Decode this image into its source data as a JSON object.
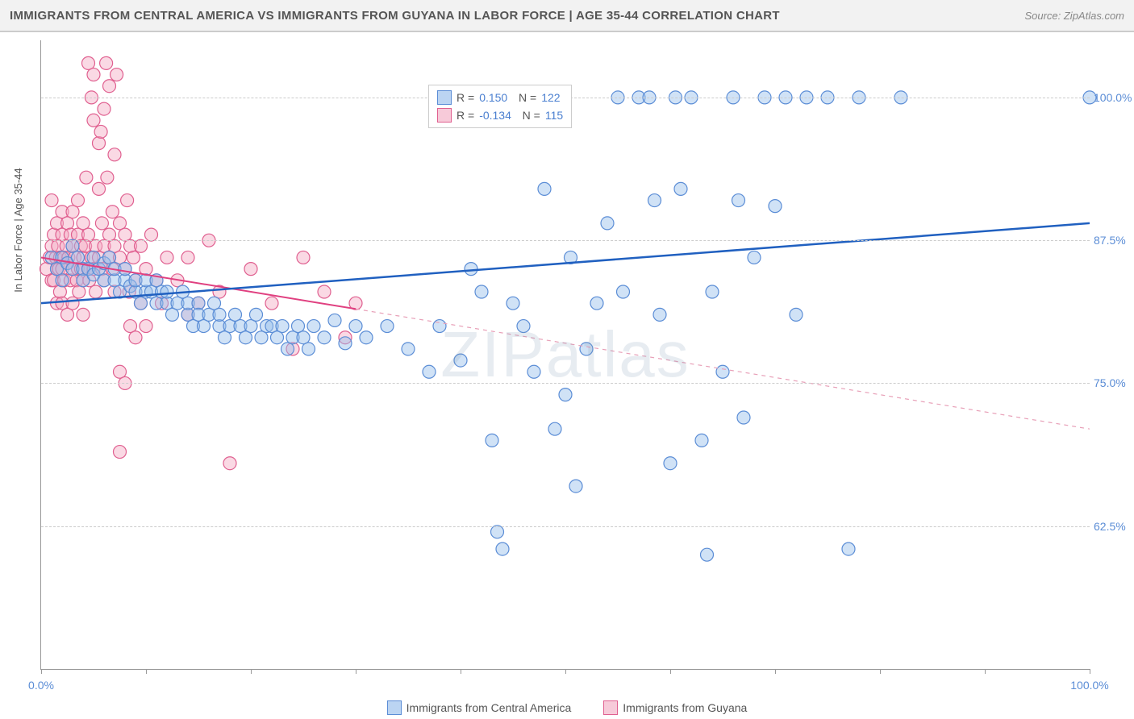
{
  "title": "IMMIGRANTS FROM CENTRAL AMERICA VS IMMIGRANTS FROM GUYANA IN LABOR FORCE | AGE 35-44 CORRELATION CHART",
  "source": "Source: ZipAtlas.com",
  "ylabel": "In Labor Force | Age 35-44",
  "watermark": "ZIPatlas",
  "chart": {
    "type": "scatter",
    "xlim": [
      0,
      100
    ],
    "ylim": [
      50,
      105
    ],
    "yticks": [
      62.5,
      75.0,
      87.5,
      100.0
    ],
    "ytick_labels": [
      "62.5%",
      "75.0%",
      "87.5%",
      "100.0%"
    ],
    "xticks": [
      0,
      10,
      20,
      30,
      40,
      50,
      60,
      70,
      80,
      90,
      100
    ],
    "xtick_labels_shown": {
      "0": "0.0%",
      "100": "100.0%"
    },
    "marker_radius": 8,
    "background_color": "#ffffff",
    "grid_color": "#cccccc",
    "series": [
      {
        "name": "Immigrants from Central America",
        "color_fill": "rgba(150,190,235,0.45)",
        "color_stroke": "#5b8dd6",
        "R": "0.150",
        "N": "122",
        "trend": {
          "x1": 0,
          "y1": 82.0,
          "x2": 100,
          "y2": 89.0,
          "color": "#2060c0",
          "width": 2.5
        },
        "points": [
          [
            1,
            86
          ],
          [
            1.5,
            85
          ],
          [
            2,
            84
          ],
          [
            2,
            86
          ],
          [
            2.5,
            85.5
          ],
          [
            3,
            85
          ],
          [
            3,
            87
          ],
          [
            3.5,
            86
          ],
          [
            4,
            85
          ],
          [
            4,
            84
          ],
          [
            4.5,
            85
          ],
          [
            5,
            84.5
          ],
          [
            5,
            86
          ],
          [
            5.5,
            85
          ],
          [
            6,
            84
          ],
          [
            6,
            85.5
          ],
          [
            6.5,
            86
          ],
          [
            7,
            84
          ],
          [
            7,
            85
          ],
          [
            7.5,
            83
          ],
          [
            8,
            84
          ],
          [
            8,
            85
          ],
          [
            8.5,
            83.5
          ],
          [
            9,
            83
          ],
          [
            9,
            84
          ],
          [
            9.5,
            82
          ],
          [
            10,
            83
          ],
          [
            10,
            84
          ],
          [
            10.5,
            83
          ],
          [
            11,
            82
          ],
          [
            11,
            84
          ],
          [
            11.5,
            83
          ],
          [
            12,
            82
          ],
          [
            12,
            83
          ],
          [
            12.5,
            81
          ],
          [
            13,
            82
          ],
          [
            13.5,
            83
          ],
          [
            14,
            81
          ],
          [
            14,
            82
          ],
          [
            14.5,
            80
          ],
          [
            15,
            82
          ],
          [
            15,
            81
          ],
          [
            15.5,
            80
          ],
          [
            16,
            81
          ],
          [
            16.5,
            82
          ],
          [
            17,
            80
          ],
          [
            17,
            81
          ],
          [
            17.5,
            79
          ],
          [
            18,
            80
          ],
          [
            18.5,
            81
          ],
          [
            19,
            80
          ],
          [
            19.5,
            79
          ],
          [
            20,
            80
          ],
          [
            20.5,
            81
          ],
          [
            21,
            79
          ],
          [
            21.5,
            80
          ],
          [
            22,
            80
          ],
          [
            22.5,
            79
          ],
          [
            23,
            80
          ],
          [
            23.5,
            78
          ],
          [
            24,
            79
          ],
          [
            24.5,
            80
          ],
          [
            25,
            79
          ],
          [
            25.5,
            78
          ],
          [
            26,
            80
          ],
          [
            27,
            79
          ],
          [
            28,
            80.5
          ],
          [
            29,
            78.5
          ],
          [
            30,
            80
          ],
          [
            31,
            79
          ],
          [
            33,
            80
          ],
          [
            35,
            78
          ],
          [
            37,
            76
          ],
          [
            38,
            80
          ],
          [
            40,
            77
          ],
          [
            41,
            85
          ],
          [
            42,
            83
          ],
          [
            43,
            70
          ],
          [
            43.5,
            62
          ],
          [
            44,
            60.5
          ],
          [
            45,
            82
          ],
          [
            46,
            80
          ],
          [
            47,
            76
          ],
          [
            48,
            92
          ],
          [
            49,
            71
          ],
          [
            49.5,
            100
          ],
          [
            50,
            74
          ],
          [
            50.5,
            86
          ],
          [
            51,
            66
          ],
          [
            52,
            78
          ],
          [
            53,
            82
          ],
          [
            54,
            89
          ],
          [
            55,
            100
          ],
          [
            55.5,
            83
          ],
          [
            57,
            100
          ],
          [
            58,
            100
          ],
          [
            58.5,
            91
          ],
          [
            59,
            81
          ],
          [
            60,
            68
          ],
          [
            60.5,
            100
          ],
          [
            61,
            92
          ],
          [
            62,
            100
          ],
          [
            63,
            70
          ],
          [
            63.5,
            60
          ],
          [
            64,
            83
          ],
          [
            65,
            76
          ],
          [
            66,
            100
          ],
          [
            66.5,
            91
          ],
          [
            67,
            72
          ],
          [
            68,
            86
          ],
          [
            69,
            100
          ],
          [
            70,
            90.5
          ],
          [
            71,
            100
          ],
          [
            72,
            81
          ],
          [
            73,
            100
          ],
          [
            75,
            100
          ],
          [
            77,
            60.5
          ],
          [
            78,
            100
          ],
          [
            82,
            100
          ],
          [
            100,
            100
          ]
        ]
      },
      {
        "name": "Immigrants from Guyana",
        "color_fill": "rgba(245,170,195,0.45)",
        "color_stroke": "#e06090",
        "R": "-0.134",
        "N": "115",
        "trend_solid": {
          "x1": 0,
          "y1": 86.0,
          "x2": 30,
          "y2": 81.5,
          "color": "#e04080",
          "width": 2
        },
        "trend_dash": {
          "x1": 30,
          "y1": 81.5,
          "x2": 100,
          "y2": 71.0,
          "color": "#e8a0b8",
          "width": 1.2
        },
        "points": [
          [
            0.5,
            85
          ],
          [
            0.8,
            86
          ],
          [
            1,
            84
          ],
          [
            1,
            87
          ],
          [
            1,
            91
          ],
          [
            1.2,
            88
          ],
          [
            1.2,
            84
          ],
          [
            1.4,
            86
          ],
          [
            1.5,
            85
          ],
          [
            1.5,
            89
          ],
          [
            1.5,
            82
          ],
          [
            1.6,
            87
          ],
          [
            1.7,
            85
          ],
          [
            1.8,
            86
          ],
          [
            1.8,
            83
          ],
          [
            2,
            85
          ],
          [
            2,
            88
          ],
          [
            2,
            90
          ],
          [
            2,
            82
          ],
          [
            2.2,
            86
          ],
          [
            2.2,
            84
          ],
          [
            2.4,
            87
          ],
          [
            2.5,
            85.5
          ],
          [
            2.5,
            89
          ],
          [
            2.5,
            81
          ],
          [
            2.6,
            86
          ],
          [
            2.8,
            84
          ],
          [
            2.8,
            88
          ],
          [
            3,
            85
          ],
          [
            3,
            87
          ],
          [
            3,
            90
          ],
          [
            3,
            82
          ],
          [
            3.2,
            86
          ],
          [
            3.4,
            84
          ],
          [
            3.5,
            88
          ],
          [
            3.5,
            85
          ],
          [
            3.5,
            91
          ],
          [
            3.6,
            83
          ],
          [
            3.8,
            87
          ],
          [
            3.8,
            85
          ],
          [
            4,
            86
          ],
          [
            4,
            84
          ],
          [
            4,
            89
          ],
          [
            4,
            81
          ],
          [
            4.2,
            87
          ],
          [
            4.3,
            93
          ],
          [
            4.5,
            85
          ],
          [
            4.5,
            88
          ],
          [
            4.5,
            103
          ],
          [
            4.6,
            84
          ],
          [
            4.8,
            100
          ],
          [
            4.8,
            86
          ],
          [
            5,
            85
          ],
          [
            5,
            102
          ],
          [
            5,
            98
          ],
          [
            5.2,
            87
          ],
          [
            5.2,
            83
          ],
          [
            5.5,
            86
          ],
          [
            5.5,
            92
          ],
          [
            5.5,
            96
          ],
          [
            5.7,
            97
          ],
          [
            5.8,
            85
          ],
          [
            5.8,
            89
          ],
          [
            6,
            84
          ],
          [
            6,
            87
          ],
          [
            6,
            99
          ],
          [
            6.2,
            103
          ],
          [
            6.3,
            93
          ],
          [
            6.5,
            86
          ],
          [
            6.5,
            88
          ],
          [
            6.5,
            101
          ],
          [
            6.8,
            85
          ],
          [
            6.8,
            90
          ],
          [
            7,
            87
          ],
          [
            7,
            83
          ],
          [
            7,
            95
          ],
          [
            7.2,
            102
          ],
          [
            7.5,
            86
          ],
          [
            7.5,
            89
          ],
          [
            7.5,
            76
          ],
          [
            7.5,
            69
          ],
          [
            8,
            85
          ],
          [
            8,
            88
          ],
          [
            8,
            75
          ],
          [
            8.2,
            91
          ],
          [
            8.4,
            83
          ],
          [
            8.5,
            87
          ],
          [
            8.5,
            80
          ],
          [
            8.8,
            86
          ],
          [
            9,
            84
          ],
          [
            9,
            79
          ],
          [
            9.5,
            87
          ],
          [
            9.5,
            82
          ],
          [
            10,
            85
          ],
          [
            10,
            80
          ],
          [
            10.5,
            88
          ],
          [
            11,
            84
          ],
          [
            11.5,
            82
          ],
          [
            12,
            86
          ],
          [
            13,
            84
          ],
          [
            14,
            86
          ],
          [
            14,
            81
          ],
          [
            15,
            82
          ],
          [
            16,
            87.5
          ],
          [
            17,
            83
          ],
          [
            18,
            68
          ],
          [
            20,
            85
          ],
          [
            22,
            82
          ],
          [
            24,
            78
          ],
          [
            25,
            86
          ],
          [
            27,
            83
          ],
          [
            29,
            79
          ],
          [
            30,
            82
          ]
        ]
      }
    ]
  },
  "legend_bottom": {
    "items": [
      {
        "swatch": "blue",
        "label": "Immigrants from Central America"
      },
      {
        "swatch": "pink",
        "label": "Immigrants from Guyana"
      }
    ]
  }
}
